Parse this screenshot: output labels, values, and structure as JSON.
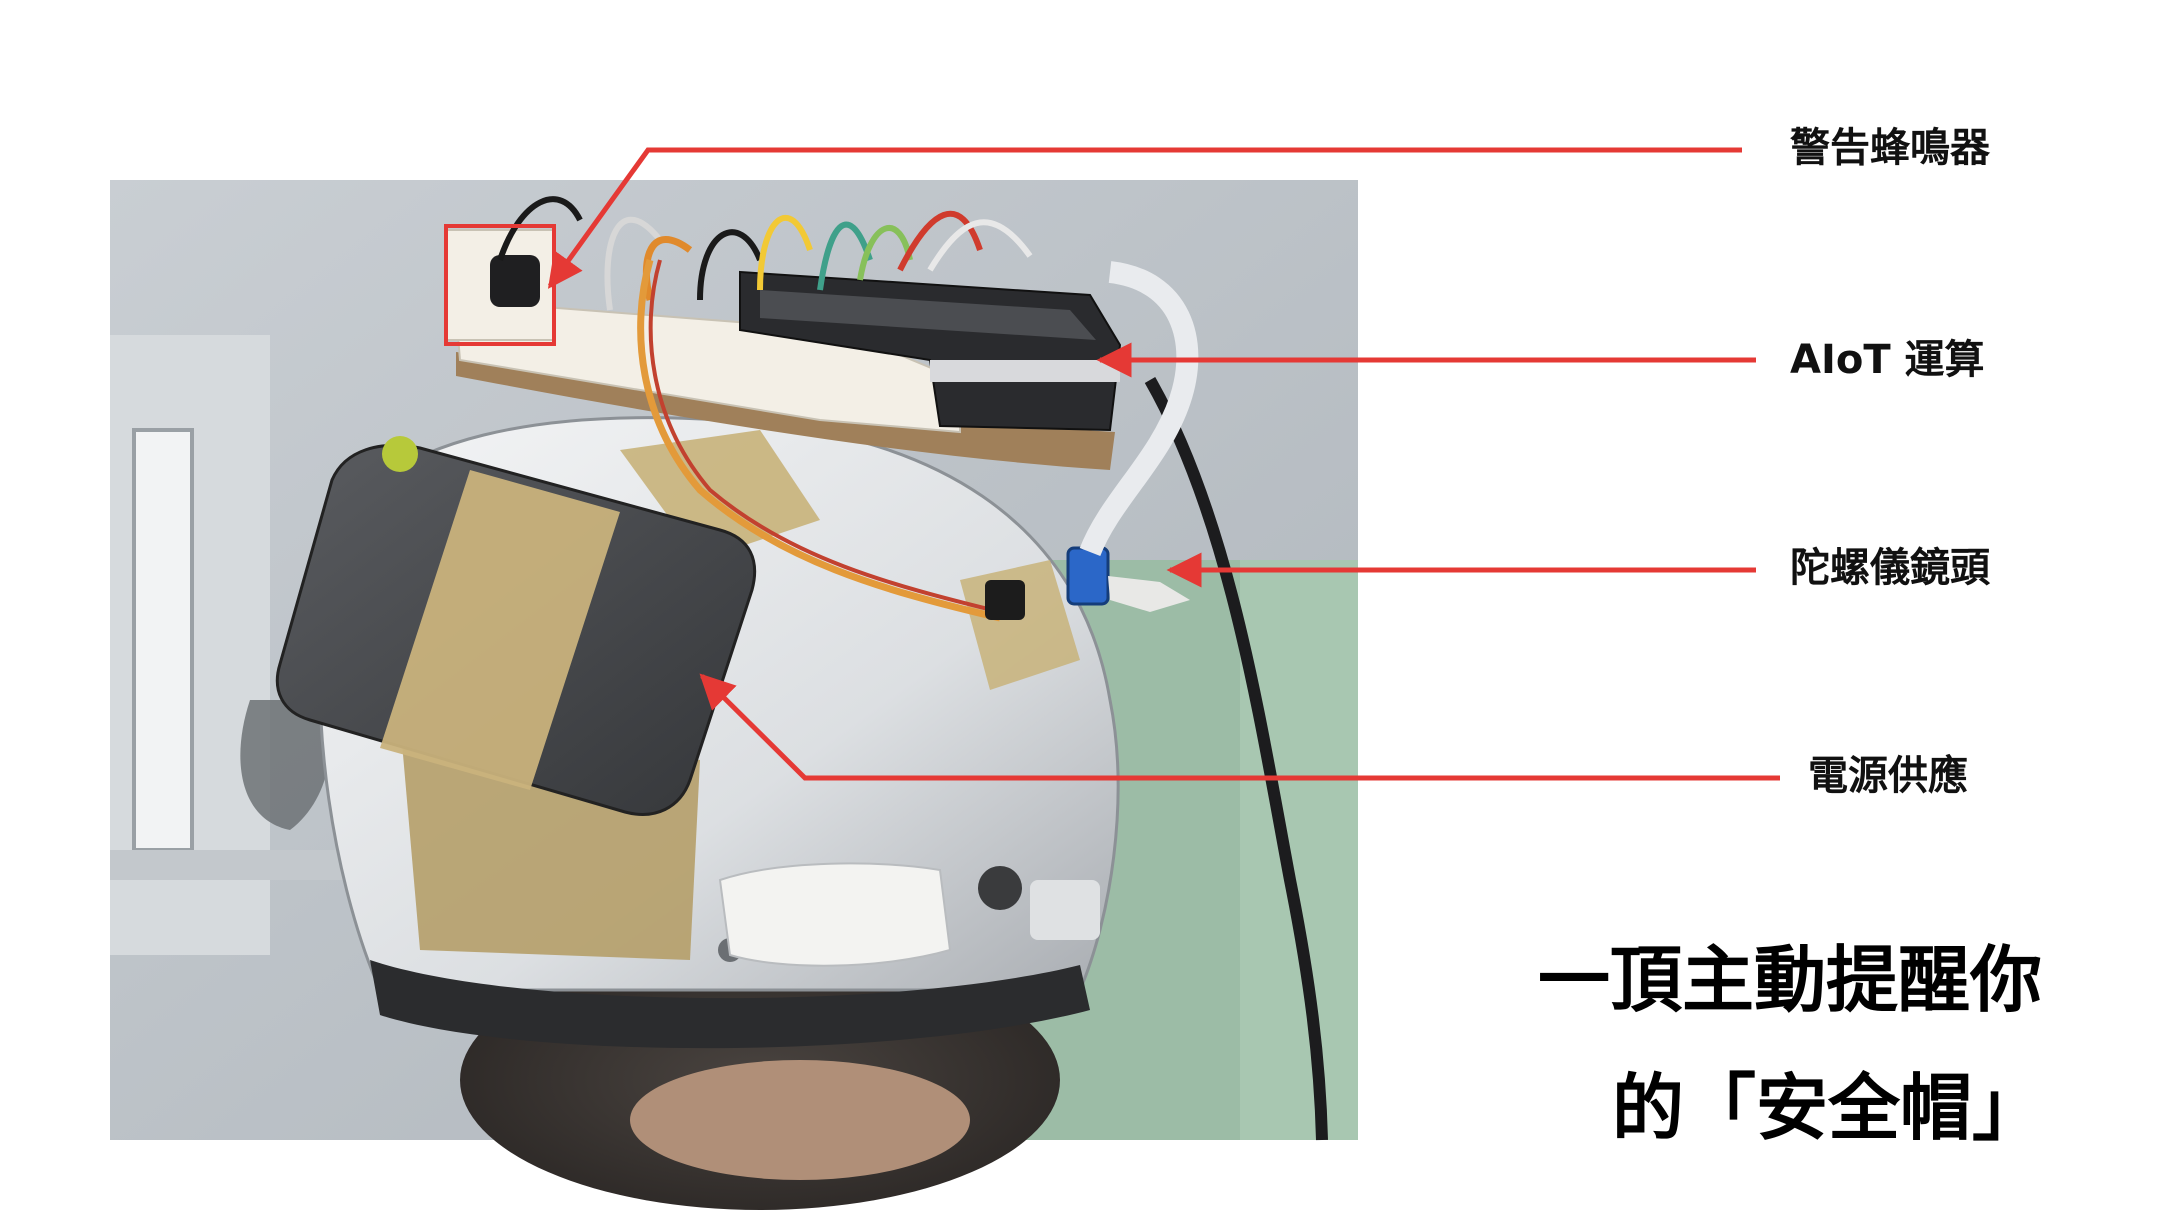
{
  "callouts": {
    "buzzer": "警告蜂鳴器",
    "aiot": "AIoT 運算",
    "gyro_camera": "陀螺儀鏡頭",
    "power": "電源供應"
  },
  "headline": {
    "line1": "一頂主動提醒你",
    "line2": "的「安全帽」"
  },
  "colors": {
    "annotation_red": "#e53935",
    "text": "#111111",
    "background": "#ffffff"
  }
}
